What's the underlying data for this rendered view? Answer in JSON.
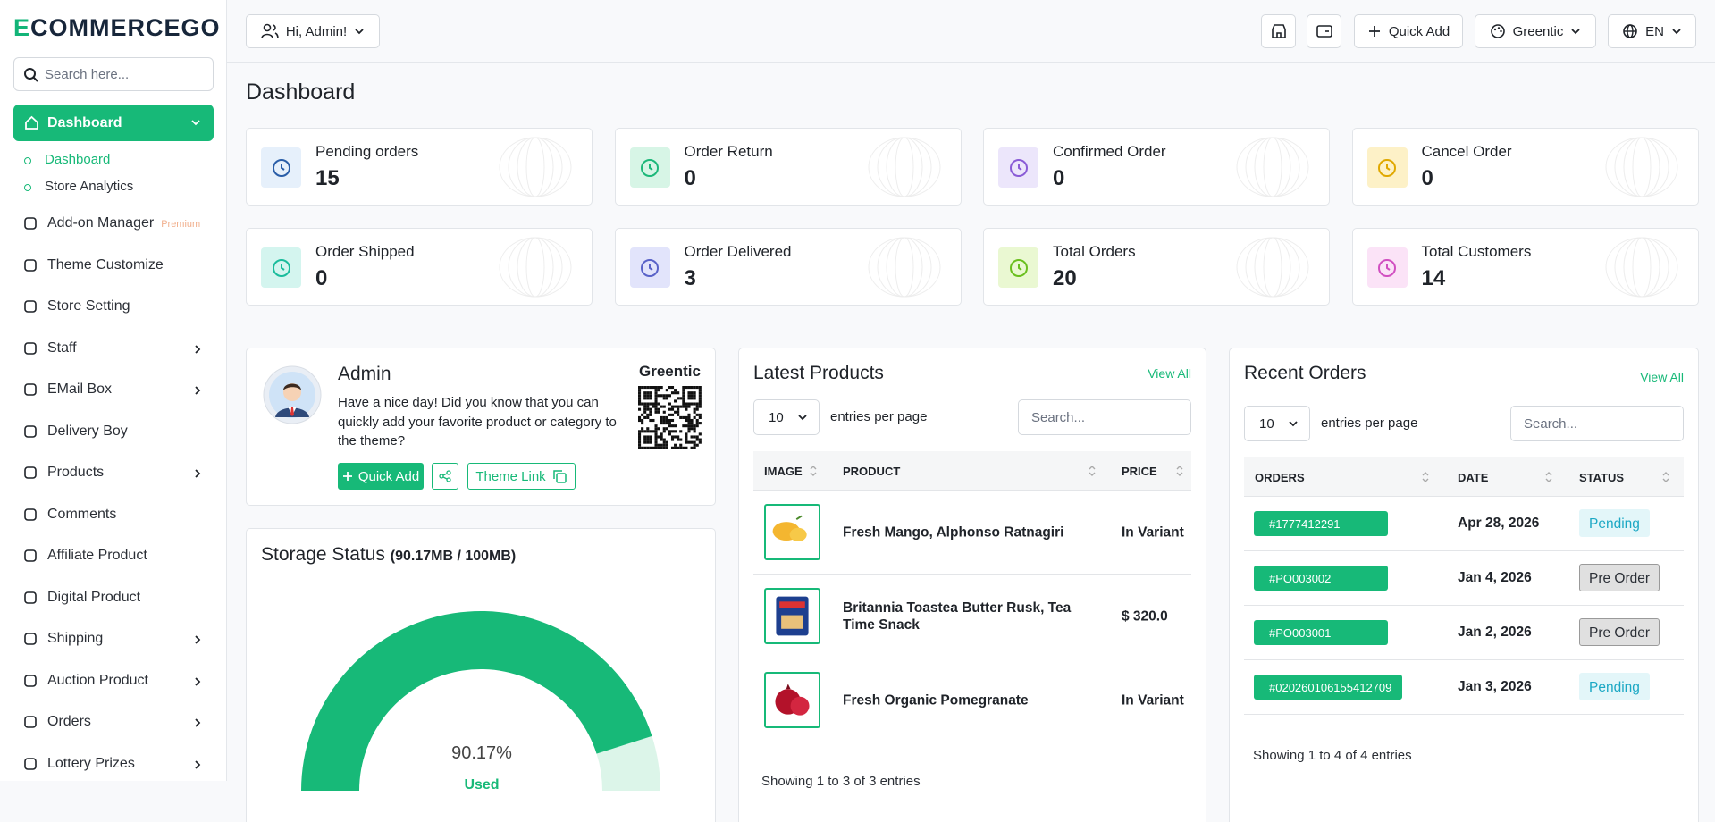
{
  "sidebar": {
    "logo": "ECOMMERCEGO",
    "search_placeholder": "Search here...",
    "active_item": "Dashboard",
    "submenu": [
      "Dashboard",
      "Store Analytics"
    ],
    "menu": [
      {
        "label": "Add-on Manager",
        "badge": "Premium",
        "has_children": false
      },
      {
        "label": "Theme Customize",
        "has_children": false
      },
      {
        "label": "Store Setting",
        "has_children": false
      },
      {
        "label": "Staff",
        "has_children": true
      },
      {
        "label": "EMail Box",
        "has_children": true
      },
      {
        "label": "Delivery Boy",
        "has_children": false
      },
      {
        "label": "Products",
        "has_children": true
      },
      {
        "label": "Comments",
        "has_children": false
      },
      {
        "label": "Affiliate Product",
        "has_children": false
      },
      {
        "label": "Digital Product",
        "has_children": false
      },
      {
        "label": "Shipping",
        "has_children": true
      },
      {
        "label": "Auction Product",
        "has_children": true
      },
      {
        "label": "Orders",
        "has_children": true
      },
      {
        "label": "Lottery Prizes",
        "has_children": true
      }
    ]
  },
  "header": {
    "greeting": "Hi, Admin!",
    "quick_add": "Quick Add",
    "store": "Greentic",
    "language": "EN"
  },
  "page_title": "Dashboard",
  "stats": [
    {
      "label": "Pending orders",
      "value": "15"
    },
    {
      "label": "Order Return",
      "value": "0"
    },
    {
      "label": "Confirmed Order",
      "value": "0"
    },
    {
      "label": "Cancel Order",
      "value": "0"
    },
    {
      "label": "Order Shipped",
      "value": "0"
    },
    {
      "label": "Order Delivered",
      "value": "3"
    },
    {
      "label": "Total Orders",
      "value": "20"
    },
    {
      "label": "Total Customers",
      "value": "14"
    }
  ],
  "admin_card": {
    "name": "Admin",
    "message": "Have a nice day! Did you know that you can quickly add your favorite product or category to the theme?",
    "quick_add": "Quick Add",
    "theme_link": "Theme Link",
    "store": "Greentic"
  },
  "storage": {
    "title": "Storage Status",
    "detail": "(90.17MB / 100MB)",
    "value": 90.17,
    "value_label": "90.17%",
    "range": [
      0,
      100
    ],
    "used": "Used",
    "color": "#17b978",
    "rest_color": "#dcf5e9"
  },
  "latest_products": {
    "title": "Latest Products",
    "view_all": "View All",
    "page_length": "10",
    "entries_label": "entries per page",
    "search_placeholder": "Search...",
    "columns": [
      "IMAGE",
      "PRODUCT",
      "PRICE"
    ],
    "rows": [
      {
        "product": "Fresh Mango, Alphonso Ratnagiri",
        "price": "In Variant"
      },
      {
        "product": "Britannia Toastea Butter Rusk, Tea Time Snack",
        "price": "$ 320.0"
      },
      {
        "product": "Fresh Organic Pomegranate",
        "price": "In Variant"
      }
    ],
    "footer": "Showing 1 to 3 of 3 entries"
  },
  "recent_orders": {
    "title": "Recent Orders",
    "view_all": "View All",
    "page_length": "10",
    "entries_label": "entries per page",
    "search_placeholder": "Search...",
    "columns": [
      "ORDERS",
      "DATE",
      "STATUS"
    ],
    "rows": [
      {
        "order": "#1777412291",
        "date": "Apr 28, 2026",
        "status": "Pending",
        "status_color": "#1ca8c4",
        "status_bg": "#e3f6f9",
        "status_border": "#e3f6f9"
      },
      {
        "order": "#PO003002",
        "date": "Jan 4, 2026",
        "status": "Pre Order",
        "status_color": "#2b2f36",
        "status_bg": "#e0e0e0",
        "status_border": "#9a9a9a"
      },
      {
        "order": "#PO003001",
        "date": "Jan 2, 2026",
        "status": "Pre Order",
        "status_color": "#2b2f36",
        "status_bg": "#e0e0e0",
        "status_border": "#9a9a9a"
      },
      {
        "order": "#020260106155412709",
        "date": "Jan 3, 2026",
        "status": "Pending",
        "status_color": "#1ca8c4",
        "status_bg": "#e3f6f9",
        "status_border": "#e3f6f9"
      }
    ],
    "footer": "Showing 1 to 4 of 4 entries"
  }
}
